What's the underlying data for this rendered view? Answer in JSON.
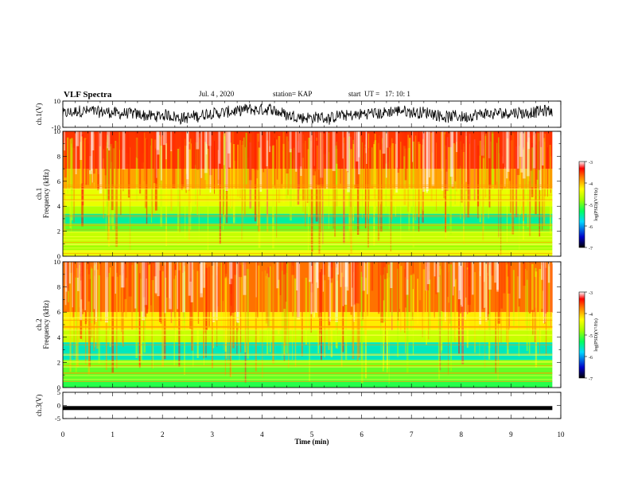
{
  "header": {
    "title": "VLF Spectra",
    "date": "Jul. 4 , 2020",
    "station": "station= KAP",
    "start": "start  UT =   17: 10: 1"
  },
  "chart_data": [
    {
      "type": "line",
      "title": "",
      "ylabel": "ch.1(V)",
      "xlim": [
        0,
        10
      ],
      "ylim": [
        -10,
        10
      ],
      "yticks": [
        "10",
        "-10"
      ],
      "x_end": 9.83,
      "description_series": "waveform amplitude, noisy, roughly -8 to 10 V"
    },
    {
      "type": "heatmap",
      "ylabel": "ch.1",
      "ylabel2": "Frequency (kHz)",
      "xlim": [
        0,
        10
      ],
      "ylim": [
        0,
        10
      ],
      "yticks": [
        "0",
        "2",
        "4",
        "6",
        "8",
        "10"
      ],
      "x_end": 9.83,
      "colorbar": {
        "label": "log(PSD)(V²/Hz)",
        "ticks": [
          "-3",
          "-4",
          "-5",
          "-6",
          "-7"
        ],
        "range": [
          -7,
          -3
        ]
      },
      "bands": [
        {
          "f0": 0.0,
          "f1": 0.5,
          "level": -4.4
        },
        {
          "f0": 0.5,
          "f1": 1.0,
          "level": -4.8
        },
        {
          "f0": 1.0,
          "f1": 2.0,
          "level": -4.6
        },
        {
          "f0": 2.0,
          "f1": 2.6,
          "level": -5.0
        },
        {
          "f0": 2.6,
          "f1": 3.4,
          "level": -5.5
        },
        {
          "f0": 3.4,
          "f1": 4.0,
          "level": -4.7
        },
        {
          "f0": 4.0,
          "f1": 5.4,
          "level": -4.4
        },
        {
          "f0": 5.4,
          "f1": 7.0,
          "level": -3.9
        },
        {
          "f0": 7.0,
          "f1": 10.0,
          "level": -3.5
        }
      ]
    },
    {
      "type": "heatmap",
      "ylabel": "ch.2",
      "ylabel2": "Frequency (kHz)",
      "xlim": [
        0,
        10
      ],
      "ylim": [
        0,
        10
      ],
      "yticks": [
        "0",
        "2",
        "4",
        "6",
        "8",
        "10"
      ],
      "x_end": 9.83,
      "colorbar": {
        "label": "log(PSD)(V²/Hz)",
        "ticks": [
          "-3",
          "-4",
          "-5",
          "-6",
          "-7"
        ],
        "range": [
          -7,
          -3
        ]
      },
      "bands": [
        {
          "f0": 0.0,
          "f1": 0.5,
          "level": -5.2
        },
        {
          "f0": 0.5,
          "f1": 1.6,
          "level": -5.0
        },
        {
          "f0": 1.6,
          "f1": 2.2,
          "level": -4.9
        },
        {
          "f0": 2.2,
          "f1": 3.6,
          "level": -5.6
        },
        {
          "f0": 3.6,
          "f1": 4.6,
          "level": -4.6
        },
        {
          "f0": 4.6,
          "f1": 6.0,
          "level": -4.2
        },
        {
          "f0": 6.0,
          "f1": 10.0,
          "level": -3.7
        }
      ]
    },
    {
      "type": "line",
      "ylabel": "ch.3(V)",
      "xlim": [
        0,
        10
      ],
      "ylim": [
        -5,
        5
      ],
      "yticks": [
        "5",
        "0",
        "-5"
      ],
      "x_end": 9.83,
      "level": -1.0
    }
  ],
  "xaxis": {
    "label": "Time (min)",
    "ticks": [
      "0",
      "1",
      "2",
      "3",
      "4",
      "5",
      "6",
      "7",
      "8",
      "9",
      "10"
    ]
  },
  "colors": {
    "axes": "#000000",
    "background": "#ffffff"
  }
}
